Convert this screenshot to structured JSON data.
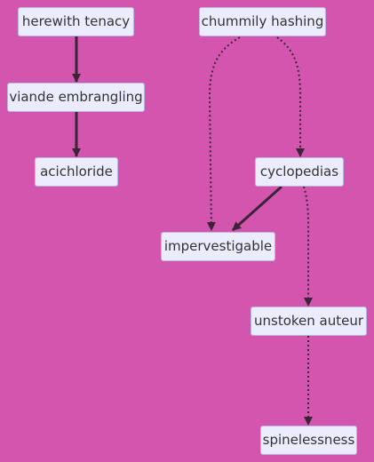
{
  "diagram": {
    "type": "flowchart",
    "colors": {
      "background": "#d355ae",
      "node_fill": "#ececff",
      "node_border": "#b9b5e6",
      "edge": "#3a2438",
      "text": "#333333"
    },
    "nodes": {
      "herewith_tenacy": "herewith tenacy",
      "viande_embrangling": "viande embrangling",
      "acichloride": "acichloride",
      "chummily_hashing": "chummily hashing",
      "cyclopedias": "cyclopedias",
      "impervestigable": "impervestigable",
      "unstoken_auteur": "unstoken auteur",
      "spinelessness": "spinelessness"
    },
    "edges": [
      {
        "from": "herewith_tenacy",
        "to": "viande_embrangling",
        "style": "solid"
      },
      {
        "from": "viande_embrangling",
        "to": "acichloride",
        "style": "solid"
      },
      {
        "from": "chummily_hashing",
        "to": "impervestigable",
        "style": "dotted"
      },
      {
        "from": "chummily_hashing",
        "to": "cyclopedias",
        "style": "dotted"
      },
      {
        "from": "cyclopedias",
        "to": "impervestigable",
        "style": "solid"
      },
      {
        "from": "cyclopedias",
        "to": "unstoken_auteur",
        "style": "dotted"
      },
      {
        "from": "unstoken_auteur",
        "to": "spinelessness",
        "style": "dotted"
      }
    ]
  }
}
